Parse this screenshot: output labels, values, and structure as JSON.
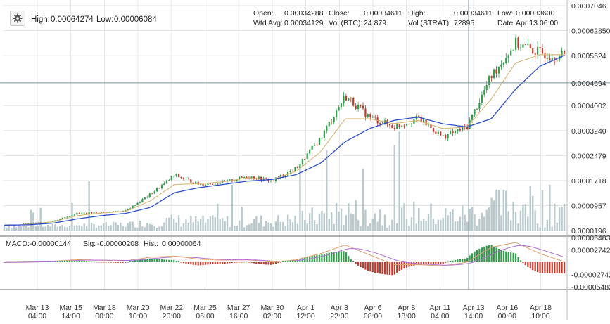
{
  "header": {
    "high_label": "High:",
    "high_value": "0.00064274",
    "low_label": "Low:",
    "low_value": "0.00006084",
    "open_label": "Open:",
    "open_value": "0.00034288",
    "close_label": "Close:",
    "close_value": "0.00034611",
    "high2_label": "High:",
    "high2_value": "0.00034611",
    "low2_label": "Low:",
    "low2_value": "0.00033600",
    "wtd_label": "Wtd Avg:",
    "wtd_value": "0.00034129",
    "volbtc_label": "Vol (BTC):",
    "volbtc_value": "24.879",
    "volstrat_label": "Vol (STRAT):",
    "volstrat_value": "72895",
    "date_label": "Date:",
    "date_value": "Apr 13 06:00"
  },
  "macd_bar": {
    "macd_label": "MACD:",
    "macd_value": "-0.00000144",
    "sig_label": "Sig:",
    "sig_value": "-0.00000208",
    "hist_label": "Hist:",
    "hist_value": "0.00000064"
  },
  "colors": {
    "candle_up": "#2e9e48",
    "candle_down": "#c0392b",
    "ma_fast": "#d4b06a",
    "ma_slow": "#2b4fc8",
    "volume": "#b9c9cc",
    "macd_line": "#e0a070",
    "signal_line": "#b070d0",
    "hist_up": "#2e9e48",
    "hist_down": "#c0392b",
    "crosshair": "#7a9aa0"
  },
  "chart_data": {
    "type": "candlestick",
    "y_axis_labels": [
      "0.0007046",
      "0.00062850",
      "0.0005524",
      "0.0004694",
      "0.0004002",
      "0.0003240",
      "0.0002479",
      "0.0001718",
      "0.0000957",
      "0.0000196"
    ],
    "ylim": [
      1.96e-05,
      0.0007046
    ],
    "macd_axis_labels": [
      "0.00005483",
      "0.00002742",
      "-0.00002742",
      "-0.00005483"
    ],
    "macd_ylim": [
      -5.483e-05,
      5.483e-05
    ],
    "x_tick_labels": [
      {
        "date": "Mar 13",
        "time": "04:00"
      },
      {
        "date": "Mar 15",
        "time": "14:00"
      },
      {
        "date": "Mar 18",
        "time": "00:00"
      },
      {
        "date": "Mar 20",
        "time": "10:00"
      },
      {
        "date": "Mar 22",
        "time": "20:00"
      },
      {
        "date": "Mar 25",
        "time": "06:00"
      },
      {
        "date": "Mar 27",
        "time": "16:00"
      },
      {
        "date": "Mar 30",
        "time": "02:00"
      },
      {
        "date": "Apr 1",
        "time": "12:00"
      },
      {
        "date": "Apr 3",
        "time": "22:00"
      },
      {
        "date": "Apr 6",
        "time": "08:00"
      },
      {
        "date": "Apr 8",
        "time": "18:00"
      },
      {
        "date": "Apr 11",
        "time": "04:00"
      },
      {
        "date": "Apr 13",
        "time": "14:00"
      },
      {
        "date": "Apr 16",
        "time": "00:00"
      },
      {
        "date": "Apr 18",
        "time": "10:00"
      }
    ],
    "crosshair": {
      "date": "Apr 13 06:00",
      "price": 0.0004694
    },
    "grid": true,
    "series": [
      {
        "kind": "candles",
        "close_anchors": [
          3.4e-05,
          4e-05,
          4.8e-05,
          7.2e-05,
          7.5e-05,
          8e-05,
          0.00013,
          0.000188,
          0.00016,
          0.000166,
          0.000185,
          0.00017,
          0.00021,
          0.000302,
          0.00043,
          0.000365,
          0.000335,
          0.000362,
          0.000305,
          0.000335,
          0.00049,
          0.00059,
          0.00056,
          0.00055
        ]
      },
      {
        "kind": "ma_fast",
        "anchors": [
          3.5e-05,
          3.8e-05,
          4.6e-05,
          6.5e-05,
          7.3e-05,
          7.8e-05,
          0.00011,
          0.00016,
          0.000162,
          0.000168,
          0.00018,
          0.000175,
          0.0002,
          0.00026,
          0.00036,
          0.00036,
          0.000345,
          0.000355,
          0.00033,
          0.000335,
          0.00042,
          0.00053,
          0.000555,
          0.000555
        ]
      },
      {
        "kind": "ma_slow",
        "anchors": [
          3.6e-05,
          3.7e-05,
          4.2e-05,
          5.5e-05,
          6.5e-05,
          7.2e-05,
          9e-05,
          0.000135,
          0.00015,
          0.00016,
          0.00017,
          0.000175,
          0.00019,
          0.000225,
          0.00029,
          0.00033,
          0.000355,
          0.000365,
          0.000345,
          0.000335,
          0.00036,
          0.00045,
          0.00052,
          0.000553
        ]
      }
    ]
  }
}
